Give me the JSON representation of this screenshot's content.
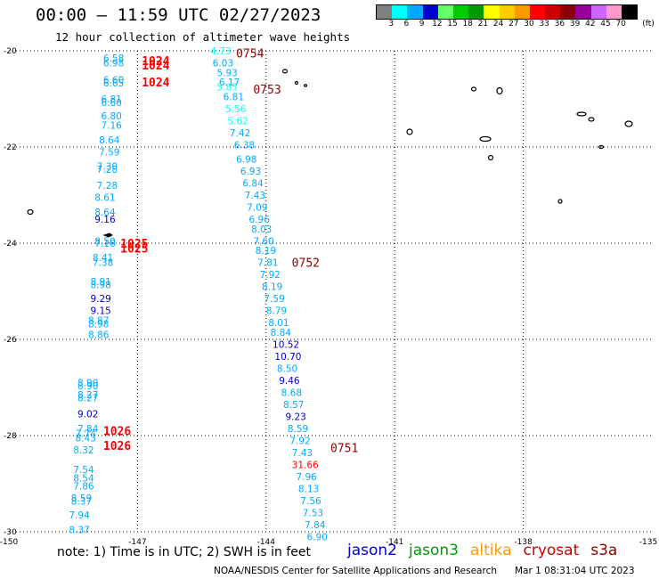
{
  "header": {
    "title": "00:00 – 11:59 UTC 02/27/2023",
    "subtitle": "12 hour collection of altimeter wave heights"
  },
  "legend": {
    "unit": "(ft)",
    "colors": [
      "#808080",
      "#00ffff",
      "#00aaff",
      "#0000cd",
      "#66ff66",
      "#00cc00",
      "#009900",
      "#ffff00",
      "#ffcc00",
      "#ff9900",
      "#ff0000",
      "#cc0000",
      "#8b0000",
      "#990099",
      "#cc66ff",
      "#ff99cc",
      "#000000"
    ],
    "labels": [
      "3",
      "6",
      "9",
      "12",
      "15",
      "18",
      "21",
      "24",
      "27",
      "30",
      "33",
      "36",
      "39",
      "42",
      "45",
      "70"
    ]
  },
  "map": {
    "lat_ticks": [
      "-20",
      "-22",
      "-24",
      "-26",
      "-28",
      "-30"
    ],
    "lon_ticks": [
      "-150",
      "-147",
      "-144",
      "-141",
      "-138",
      "-135"
    ],
    "islands": [
      "island-1",
      "island-2",
      "island-3",
      "island-4",
      "island-5",
      "island-6",
      "island-7",
      "island-8",
      "island-9",
      "island-10",
      "island-11",
      "island-12",
      "island-13",
      "island-14"
    ],
    "track_times": [
      {
        "text": "0754",
        "color": "#8b0000",
        "lon": -144.7,
        "lat": -20.05
      },
      {
        "text": "0753",
        "color": "#8b0000",
        "lon": -144.3,
        "lat": -20.8
      },
      {
        "text": "0752",
        "color": "#8b0000",
        "lon": -143.4,
        "lat": -24.4
      },
      {
        "text": "0751",
        "color": "#8b0000",
        "lon": -142.5,
        "lat": -28.25
      },
      {
        "text": "1024",
        "color": "#ff0000",
        "lon": -146.9,
        "lat": -20.2
      },
      {
        "text": "1024",
        "color": "#ff0000",
        "lon": -146.9,
        "lat": -20.3
      },
      {
        "text": "1024",
        "color": "#ff0000",
        "lon": -146.9,
        "lat": -20.65
      },
      {
        "text": "1025",
        "color": "#ff0000",
        "lon": -147.4,
        "lat": -24.0
      },
      {
        "text": "1025",
        "color": "#ff0000",
        "lon": -147.4,
        "lat": -24.1
      },
      {
        "text": "1026",
        "color": "#ff0000",
        "lon": -147.8,
        "lat": -27.9
      },
      {
        "text": "1026",
        "color": "#ff0000",
        "lon": -147.8,
        "lat": -28.2
      }
    ],
    "wave_heights": [
      {
        "v": "6.58",
        "color": "#00aaff",
        "lon": -147.8,
        "lat": -20.15
      },
      {
        "v": "6.98",
        "color": "#00aaff",
        "lon": -147.8,
        "lat": -20.25
      },
      {
        "v": "6.60",
        "color": "#00aaff",
        "lon": -147.8,
        "lat": -20.6
      },
      {
        "v": "6.65",
        "color": "#00aaff",
        "lon": -147.8,
        "lat": -20.67
      },
      {
        "v": "6.81",
        "color": "#00aaff",
        "lon": -147.85,
        "lat": -21.0
      },
      {
        "v": "6.60",
        "color": "#00aaff",
        "lon": -147.85,
        "lat": -21.07
      },
      {
        "v": "6.80",
        "color": "#00aaff",
        "lon": -147.85,
        "lat": -21.35
      },
      {
        "v": "7.16",
        "color": "#00aaff",
        "lon": -147.85,
        "lat": -21.55
      },
      {
        "v": "8.64",
        "color": "#00aaff",
        "lon": -147.9,
        "lat": -21.85
      },
      {
        "v": "7.59",
        "color": "#00aaff",
        "lon": -147.9,
        "lat": -22.1
      },
      {
        "v": "7.30",
        "color": "#00aaff",
        "lon": -147.95,
        "lat": -22.4
      },
      {
        "v": "7.28",
        "color": "#00aaff",
        "lon": -147.95,
        "lat": -22.46
      },
      {
        "v": "7.28",
        "color": "#00aaff",
        "lon": -147.95,
        "lat": -22.8
      },
      {
        "v": "8.61",
        "color": "#00aaff",
        "lon": -148.0,
        "lat": -23.05
      },
      {
        "v": "8.64",
        "color": "#00aaff",
        "lon": -148.0,
        "lat": -23.35
      },
      {
        "v": "9.16",
        "color": "#0000cd",
        "lon": -148.0,
        "lat": -23.5
      },
      {
        "v": "8.50",
        "color": "#00aaff",
        "lon": -148.0,
        "lat": -23.95
      },
      {
        "v": "7.16",
        "color": "#00aaff",
        "lon": -148.0,
        "lat": -24.0
      },
      {
        "v": "8.41",
        "color": "#00aaff",
        "lon": -148.05,
        "lat": -24.3
      },
      {
        "v": "7.38",
        "color": "#00aaff",
        "lon": -148.05,
        "lat": -24.4
      },
      {
        "v": "8.91",
        "color": "#00aaff",
        "lon": -148.1,
        "lat": -24.8
      },
      {
        "v": "8.98",
        "color": "#00aaff",
        "lon": -148.1,
        "lat": -24.86
      },
      {
        "v": "9.29",
        "color": "#0000cd",
        "lon": -148.1,
        "lat": -25.15
      },
      {
        "v": "9.15",
        "color": "#0000cd",
        "lon": -148.1,
        "lat": -25.4
      },
      {
        "v": "8.87",
        "color": "#00aaff",
        "lon": -148.15,
        "lat": -25.6
      },
      {
        "v": "8.98",
        "color": "#00aaff",
        "lon": -148.15,
        "lat": -25.68
      },
      {
        "v": "8.86",
        "color": "#00aaff",
        "lon": -148.15,
        "lat": -25.9
      },
      {
        "v": "8.90",
        "color": "#00aaff",
        "lon": -148.4,
        "lat": -26.9
      },
      {
        "v": "8.90",
        "color": "#00aaff",
        "lon": -148.4,
        "lat": -26.96
      },
      {
        "v": "8.27",
        "color": "#00aaff",
        "lon": -148.4,
        "lat": -27.15
      },
      {
        "v": "8.27",
        "color": "#00aaff",
        "lon": -148.4,
        "lat": -27.21
      },
      {
        "v": "9.02",
        "color": "#0000cd",
        "lon": -148.4,
        "lat": -27.55
      },
      {
        "v": "7.84",
        "color": "#00aaff",
        "lon": -148.4,
        "lat": -27.85
      },
      {
        "v": "7.74",
        "color": "#00aaff",
        "lon": -148.45,
        "lat": -27.95
      },
      {
        "v": "8.43",
        "color": "#00aaff",
        "lon": -148.45,
        "lat": -28.05
      },
      {
        "v": "8.32",
        "color": "#00aaff",
        "lon": -148.5,
        "lat": -28.3
      },
      {
        "v": "7.54",
        "color": "#00aaff",
        "lon": -148.5,
        "lat": -28.7
      },
      {
        "v": "8.54",
        "color": "#00aaff",
        "lon": -148.5,
        "lat": -28.88
      },
      {
        "v": "7.86",
        "color": "#00aaff",
        "lon": -148.5,
        "lat": -29.05
      },
      {
        "v": "8.59",
        "color": "#00aaff",
        "lon": -148.55,
        "lat": -29.3
      },
      {
        "v": "8.37",
        "color": "#00aaff",
        "lon": -148.55,
        "lat": -29.36
      },
      {
        "v": "7.94",
        "color": "#00aaff",
        "lon": -148.6,
        "lat": -29.65
      },
      {
        "v": "8.37",
        "color": "#00aaff",
        "lon": -148.6,
        "lat": -29.95
      },
      {
        "v": "4.73",
        "color": "#00ffff",
        "lon": -145.3,
        "lat": -20.0
      },
      {
        "v": "6.03",
        "color": "#00aaff",
        "lon": -145.25,
        "lat": -20.25
      },
      {
        "v": "5.93",
        "color": "#00aaff",
        "lon": -145.15,
        "lat": -20.45
      },
      {
        "v": "6.17",
        "color": "#00aaff",
        "lon": -145.1,
        "lat": -20.65
      },
      {
        "v": "5.85",
        "color": "#00ffff",
        "lon": -145.15,
        "lat": -20.75
      },
      {
        "v": "6.81",
        "color": "#00aaff",
        "lon": -145.0,
        "lat": -20.95
      },
      {
        "v": "5.56",
        "color": "#00ffff",
        "lon": -144.95,
        "lat": -21.2
      },
      {
        "v": "5.62",
        "color": "#00ffff",
        "lon": -144.9,
        "lat": -21.45
      },
      {
        "v": "7.42",
        "color": "#00aaff",
        "lon": -144.85,
        "lat": -21.7
      },
      {
        "v": "6.38",
        "color": "#00aaff",
        "lon": -144.75,
        "lat": -21.95
      },
      {
        "v": "6.98",
        "color": "#00aaff",
        "lon": -144.7,
        "lat": -22.25
      },
      {
        "v": "6.93",
        "color": "#00aaff",
        "lon": -144.6,
        "lat": -22.5
      },
      {
        "v": "6.84",
        "color": "#00aaff",
        "lon": -144.55,
        "lat": -22.75
      },
      {
        "v": "7.43",
        "color": "#00aaff",
        "lon": -144.5,
        "lat": -23.0
      },
      {
        "v": "7.09",
        "color": "#00aaff",
        "lon": -144.45,
        "lat": -23.25
      },
      {
        "v": "6.96",
        "color": "#00aaff",
        "lon": -144.4,
        "lat": -23.5
      },
      {
        "v": "8.03",
        "color": "#00aaff",
        "lon": -144.35,
        "lat": -23.7
      },
      {
        "v": "7.60",
        "color": "#00aaff",
        "lon": -144.3,
        "lat": -23.95
      },
      {
        "v": "8.19",
        "color": "#00aaff",
        "lon": -144.25,
        "lat": -24.15
      },
      {
        "v": "7.81",
        "color": "#00aaff",
        "lon": -144.2,
        "lat": -24.4
      },
      {
        "v": "7.92",
        "color": "#00aaff",
        "lon": -144.15,
        "lat": -24.65
      },
      {
        "v": "8.19",
        "color": "#00aaff",
        "lon": -144.1,
        "lat": -24.9
      },
      {
        "v": "7.59",
        "color": "#00aaff",
        "lon": -144.05,
        "lat": -25.15
      },
      {
        "v": "8.79",
        "color": "#00aaff",
        "lon": -144.0,
        "lat": -25.4
      },
      {
        "v": "8.01",
        "color": "#00aaff",
        "lon": -143.95,
        "lat": -25.65
      },
      {
        "v": "8.84",
        "color": "#00aaff",
        "lon": -143.9,
        "lat": -25.85
      },
      {
        "v": "10.52",
        "color": "#0000cd",
        "lon": -143.85,
        "lat": -26.1
      },
      {
        "v": "10.70",
        "color": "#0000cd",
        "lon": -143.8,
        "lat": -26.35
      },
      {
        "v": "8.50",
        "color": "#00aaff",
        "lon": -143.75,
        "lat": -26.6
      },
      {
        "v": "9.46",
        "color": "#0000cd",
        "lon": -143.7,
        "lat": -26.85
      },
      {
        "v": "8.68",
        "color": "#00aaff",
        "lon": -143.65,
        "lat": -27.1
      },
      {
        "v": "8.57",
        "color": "#00aaff",
        "lon": -143.6,
        "lat": -27.35
      },
      {
        "v": "9.23",
        "color": "#0000cd",
        "lon": -143.55,
        "lat": -27.6
      },
      {
        "v": "8.59",
        "color": "#00aaff",
        "lon": -143.5,
        "lat": -27.85
      },
      {
        "v": "7.92",
        "color": "#00aaff",
        "lon": -143.45,
        "lat": -28.1
      },
      {
        "v": "7.43",
        "color": "#00aaff",
        "lon": -143.4,
        "lat": -28.35
      },
      {
        "v": "31.66",
        "color": "#ff0000",
        "lon": -143.4,
        "lat": -28.6
      },
      {
        "v": "7.96",
        "color": "#00aaff",
        "lon": -143.3,
        "lat": -28.85
      },
      {
        "v": "8.13",
        "color": "#00aaff",
        "lon": -143.25,
        "lat": -29.1
      },
      {
        "v": "7.56",
        "color": "#00aaff",
        "lon": -143.2,
        "lat": -29.35
      },
      {
        "v": "7.53",
        "color": "#00aaff",
        "lon": -143.15,
        "lat": -29.6
      },
      {
        "v": "7.84",
        "color": "#00aaff",
        "lon": -143.1,
        "lat": -29.85
      },
      {
        "v": "6.90",
        "color": "#00aaff",
        "lon": -143.05,
        "lat": -30.1
      }
    ]
  },
  "footer": {
    "note": "note: 1) Time is in UTC; 2) SWH is in feet",
    "satellites": [
      {
        "name": "jason2",
        "color": "#0000cd"
      },
      {
        "name": "jason3",
        "color": "#009900"
      },
      {
        "name": "altika",
        "color": "#ff9900"
      },
      {
        "name": "cryosat",
        "color": "#cc0000"
      },
      {
        "name": "s3a",
        "color": "#8b0000"
      }
    ],
    "credit": "NOAA/NESDIS Center for Satellite Applications and Research",
    "credit_date": "Mar  1 08:31:04 UTC 2023"
  }
}
